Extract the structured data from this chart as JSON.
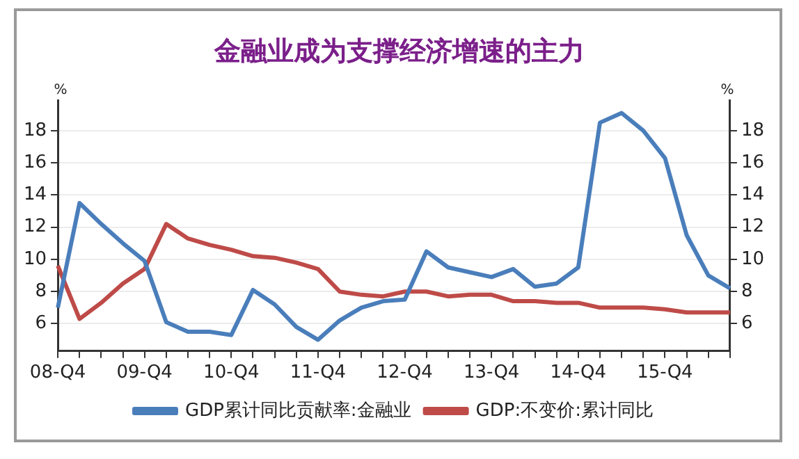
{
  "chart_data": {
    "type": "line",
    "title": "金融业成为支撑经济增速的主力",
    "ylabel": "%",
    "y2label": "%",
    "categories": [
      "08-Q4",
      null,
      null,
      null,
      "09-Q4",
      null,
      null,
      null,
      "10-Q4",
      null,
      null,
      null,
      "11-Q4",
      null,
      null,
      null,
      "12-Q4",
      null,
      null,
      null,
      "13-Q4",
      null,
      null,
      null,
      "14-Q4",
      null,
      null,
      null,
      "15-Q4",
      null,
      null,
      null
    ],
    "series": [
      {
        "name": "GDP累计同比贡献率:金融业",
        "color": "#4a7ebb",
        "values": [
          7.0,
          13.5,
          12.2,
          11.0,
          9.9,
          6.1,
          5.5,
          5.5,
          5.3,
          8.1,
          7.2,
          5.8,
          5.0,
          6.2,
          7.0,
          7.4,
          7.5,
          10.5,
          9.5,
          9.2,
          8.9,
          9.4,
          8.3,
          8.5,
          9.5,
          18.5,
          19.1,
          18.0,
          16.3,
          11.5,
          9.0,
          8.2
        ]
      },
      {
        "name": "GDP:不变价:累计同比",
        "color": "#be4b48",
        "values": [
          9.6,
          6.3,
          7.3,
          8.5,
          9.4,
          12.2,
          11.3,
          10.9,
          10.6,
          10.2,
          10.1,
          9.8,
          9.4,
          8.0,
          7.8,
          7.7,
          8.0,
          8.0,
          7.7,
          7.8,
          7.8,
          7.4,
          7.4,
          7.3,
          7.3,
          7.0,
          7.0,
          7.0,
          6.9,
          6.7,
          6.7,
          6.7
        ]
      }
    ],
    "ylim": [
      4.3,
      19.9
    ],
    "yticks": [
      6,
      8,
      10,
      12,
      14,
      16,
      18
    ],
    "y2lim": [
      4.3,
      19.9
    ],
    "y2ticks": [
      6,
      8,
      10,
      12,
      14,
      16,
      18
    ],
    "grid": "y",
    "legend": "bottom",
    "marker": "none",
    "line_style": "solid"
  }
}
